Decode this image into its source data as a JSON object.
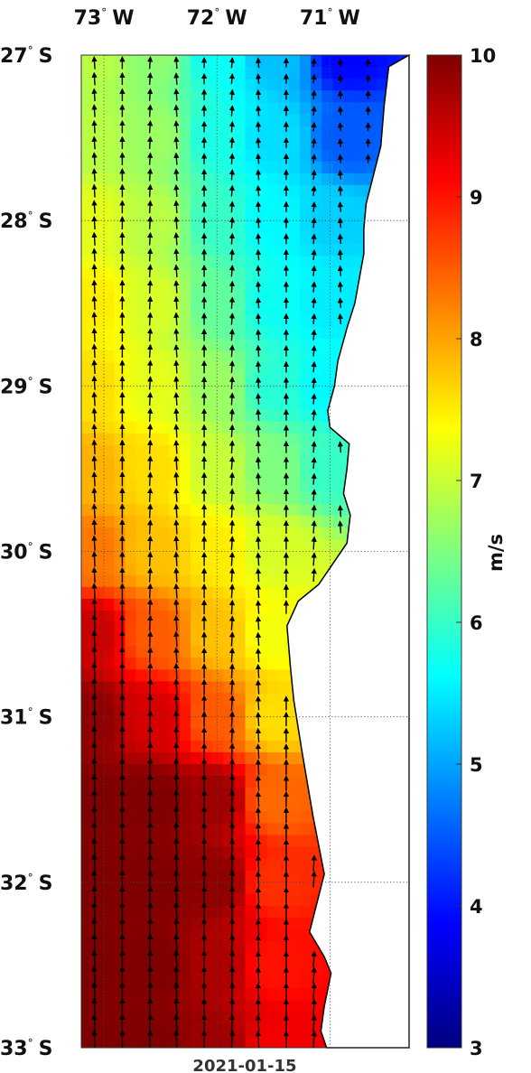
{
  "map": {
    "date": "2021-01-15",
    "lon_ticks": [
      {
        "value": -73,
        "deg": "73",
        "hemi": "W"
      },
      {
        "value": -72,
        "deg": "72",
        "hemi": "W"
      },
      {
        "value": -71,
        "deg": "71",
        "hemi": "W"
      }
    ],
    "lat_ticks": [
      {
        "value": -27,
        "deg": "27",
        "hemi": "S"
      },
      {
        "value": -28,
        "deg": "28",
        "hemi": "S"
      },
      {
        "value": -29,
        "deg": "29",
        "hemi": "S"
      },
      {
        "value": -30,
        "deg": "30",
        "hemi": "S"
      },
      {
        "value": -31,
        "deg": "31",
        "hemi": "S"
      },
      {
        "value": -32,
        "deg": "32",
        "hemi": "S"
      },
      {
        "value": -33,
        "deg": "33",
        "hemi": "S"
      }
    ],
    "lon_range": [
      -73.2,
      -70.3
    ],
    "lat_range": [
      -33,
      -27
    ],
    "grid": true,
    "coastline": [
      [
        -70.3,
        -27
      ],
      [
        -70.48,
        -27.07
      ],
      [
        -70.52,
        -27.3
      ],
      [
        -70.55,
        -27.55
      ],
      [
        -70.68,
        -27.9
      ],
      [
        -70.7,
        -28.05
      ],
      [
        -70.7,
        -28.2
      ],
      [
        -70.78,
        -28.5
      ],
      [
        -70.85,
        -28.65
      ],
      [
        -70.93,
        -28.85
      ],
      [
        -70.96,
        -29.0
      ],
      [
        -71.02,
        -29.15
      ],
      [
        -71.0,
        -29.25
      ],
      [
        -70.83,
        -29.35
      ],
      [
        -70.85,
        -29.5
      ],
      [
        -70.88,
        -29.65
      ],
      [
        -70.82,
        -29.78
      ],
      [
        -70.85,
        -29.95
      ],
      [
        -70.95,
        -30.05
      ],
      [
        -71.1,
        -30.2
      ],
      [
        -71.28,
        -30.3
      ],
      [
        -71.38,
        -30.45
      ],
      [
        -71.35,
        -30.7
      ],
      [
        -71.32,
        -30.9
      ],
      [
        -71.25,
        -31.2
      ],
      [
        -71.15,
        -31.6
      ],
      [
        -71.05,
        -31.95
      ],
      [
        -71.18,
        -32.3
      ],
      [
        -71.05,
        -32.45
      ],
      [
        -70.99,
        -32.55
      ],
      [
        -71.05,
        -32.75
      ],
      [
        -71.08,
        -32.9
      ],
      [
        -71.03,
        -33.0
      ]
    ]
  },
  "wind_field": {
    "variable": "wind speed",
    "arrow_direction": "northward",
    "speed_samples": [
      {
        "lat": -27.0,
        "lon": -73.1,
        "speed": 6.9
      },
      {
        "lat": -27.0,
        "lon": -72.55,
        "speed": 6.6
      },
      {
        "lat": -27.0,
        "lon": -72.0,
        "speed": 5.7
      },
      {
        "lat": -27.0,
        "lon": -71.5,
        "speed": 5.2
      },
      {
        "lat": -27.0,
        "lon": -70.85,
        "speed": 3.9
      },
      {
        "lat": -27.5,
        "lon": -73.1,
        "speed": 6.9
      },
      {
        "lat": -27.5,
        "lon": -72.55,
        "speed": 6.7
      },
      {
        "lat": -27.5,
        "lon": -72.0,
        "speed": 5.8
      },
      {
        "lat": -27.5,
        "lon": -71.5,
        "speed": 5.4
      },
      {
        "lat": -27.5,
        "lon": -70.85,
        "speed": 4.5
      },
      {
        "lat": -28.0,
        "lon": -73.1,
        "speed": 7.2
      },
      {
        "lat": -28.0,
        "lon": -72.55,
        "speed": 6.9
      },
      {
        "lat": -28.0,
        "lon": -72.0,
        "speed": 6.0
      },
      {
        "lat": -28.0,
        "lon": -71.5,
        "speed": 5.6
      },
      {
        "lat": -28.0,
        "lon": -71.0,
        "speed": 5.3
      },
      {
        "lat": -28.5,
        "lon": -73.1,
        "speed": 7.5
      },
      {
        "lat": -28.5,
        "lon": -72.55,
        "speed": 7.1
      },
      {
        "lat": -28.5,
        "lon": -72.0,
        "speed": 6.3
      },
      {
        "lat": -28.5,
        "lon": -71.5,
        "speed": 5.7
      },
      {
        "lat": -28.5,
        "lon": -71.0,
        "speed": 5.5
      },
      {
        "lat": -29.0,
        "lon": -73.1,
        "speed": 7.6
      },
      {
        "lat": -29.0,
        "lon": -72.55,
        "speed": 7.2
      },
      {
        "lat": -29.0,
        "lon": -72.0,
        "speed": 6.7
      },
      {
        "lat": -29.0,
        "lon": -71.5,
        "speed": 5.9
      },
      {
        "lat": -29.0,
        "lon": -71.0,
        "speed": 5.6
      },
      {
        "lat": -29.5,
        "lon": -73.1,
        "speed": 7.9
      },
      {
        "lat": -29.5,
        "lon": -72.55,
        "speed": 7.6
      },
      {
        "lat": -29.5,
        "lon": -72.0,
        "speed": 7.0
      },
      {
        "lat": -29.5,
        "lon": -71.5,
        "speed": 6.5
      },
      {
        "lat": -29.5,
        "lon": -71.0,
        "speed": 6.0
      },
      {
        "lat": -30.0,
        "lon": -73.1,
        "speed": 8.3
      },
      {
        "lat": -30.0,
        "lon": -72.55,
        "speed": 7.8
      },
      {
        "lat": -30.0,
        "lon": -72.0,
        "speed": 7.5
      },
      {
        "lat": -30.0,
        "lon": -71.5,
        "speed": 7.1
      },
      {
        "lat": -30.5,
        "lon": -73.1,
        "speed": 9.5
      },
      {
        "lat": -30.5,
        "lon": -72.55,
        "speed": 8.5
      },
      {
        "lat": -30.5,
        "lon": -72.0,
        "speed": 7.8
      },
      {
        "lat": -30.5,
        "lon": -71.5,
        "speed": 7.3
      },
      {
        "lat": -31.0,
        "lon": -73.1,
        "speed": 9.9
      },
      {
        "lat": -31.0,
        "lon": -72.55,
        "speed": 9.4
      },
      {
        "lat": -31.0,
        "lon": -72.0,
        "speed": 8.5
      },
      {
        "lat": -31.0,
        "lon": -71.5,
        "speed": 7.6
      },
      {
        "lat": -31.5,
        "lon": -73.1,
        "speed": 10.0
      },
      {
        "lat": -31.5,
        "lon": -72.55,
        "speed": 10.0
      },
      {
        "lat": -31.5,
        "lon": -72.0,
        "speed": 9.8
      },
      {
        "lat": -31.5,
        "lon": -71.5,
        "speed": 8.4
      },
      {
        "lat": -32.0,
        "lon": -73.1,
        "speed": 10.0
      },
      {
        "lat": -32.0,
        "lon": -72.55,
        "speed": 10.0
      },
      {
        "lat": -32.0,
        "lon": -72.0,
        "speed": 9.9
      },
      {
        "lat": -32.0,
        "lon": -71.5,
        "speed": 8.8
      },
      {
        "lat": -32.5,
        "lon": -73.1,
        "speed": 10.0
      },
      {
        "lat": -32.5,
        "lon": -72.55,
        "speed": 10.0
      },
      {
        "lat": -32.5,
        "lon": -72.0,
        "speed": 9.7
      },
      {
        "lat": -32.5,
        "lon": -71.5,
        "speed": 9.0
      },
      {
        "lat": -33.0,
        "lon": -73.1,
        "speed": 10.0
      },
      {
        "lat": -33.0,
        "lon": -72.55,
        "speed": 10.0
      },
      {
        "lat": -33.0,
        "lon": -72.0,
        "speed": 9.8
      },
      {
        "lat": -33.0,
        "lon": -71.5,
        "speed": 9.2
      }
    ]
  },
  "colorbar": {
    "min": 3,
    "max": 10,
    "ticks": [
      "3",
      "4",
      "5",
      "6",
      "7",
      "8",
      "9",
      "10"
    ],
    "unit": "m/s",
    "colormap": "jet",
    "colors": [
      "#00007f",
      "#0000ff",
      "#007fff",
      "#00ffff",
      "#7fff7f",
      "#ffff00",
      "#ff7f00",
      "#ff0000",
      "#7f0000"
    ]
  }
}
